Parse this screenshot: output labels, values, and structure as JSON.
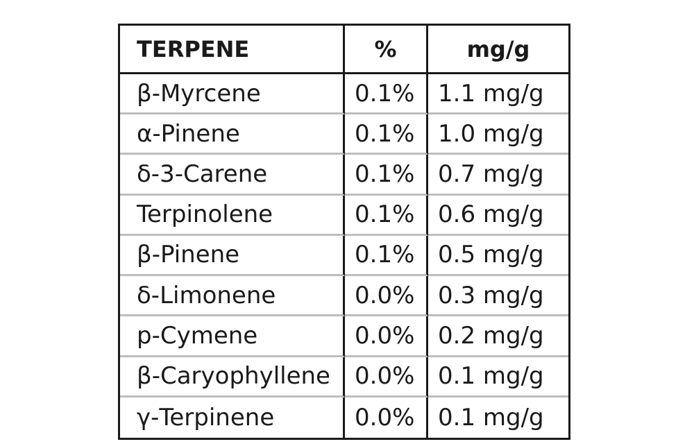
{
  "table": {
    "headers": {
      "terpene": "TERPENE",
      "percent": "%",
      "mgg": "mg/g"
    },
    "rows": [
      {
        "name": "β-Myrcene",
        "percent": "0.1%",
        "mgg": "1.1 mg/g"
      },
      {
        "name": "α-Pinene",
        "percent": "0.1%",
        "mgg": "1.0 mg/g"
      },
      {
        "name": "δ-3-Carene",
        "percent": "0.1%",
        "mgg": "0.7 mg/g"
      },
      {
        "name": "Terpinolene",
        "percent": "0.1%",
        "mgg": "0.6 mg/g"
      },
      {
        "name": "β-Pinene",
        "percent": "0.1%",
        "mgg": "0.5 mg/g"
      },
      {
        "name": "δ-Limonene",
        "percent": "0.0%",
        "mgg": "0.3 mg/g"
      },
      {
        "name": "p-Cymene",
        "percent": "0.0%",
        "mgg": "0.2 mg/g"
      },
      {
        "name": "β-Caryophyllene",
        "percent": "0.0%",
        "mgg": "0.1 mg/g"
      },
      {
        "name": "γ-Terpinene",
        "percent": "0.0%",
        "mgg": "0.1 mg/g"
      }
    ]
  }
}
